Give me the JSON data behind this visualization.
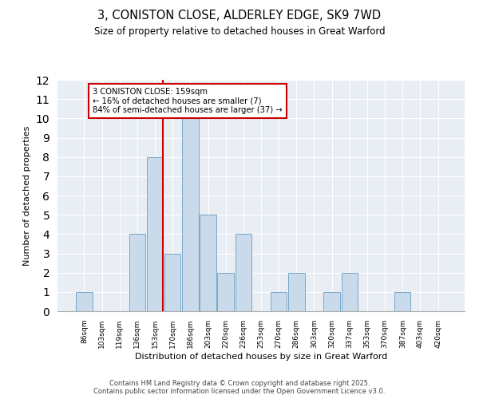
{
  "title1": "3, CONISTON CLOSE, ALDERLEY EDGE, SK9 7WD",
  "title2": "Size of property relative to detached houses in Great Warford",
  "xlabel": "Distribution of detached houses by size in Great Warford",
  "ylabel": "Number of detached properties",
  "categories": [
    "86sqm",
    "103sqm",
    "119sqm",
    "136sqm",
    "153sqm",
    "170sqm",
    "186sqm",
    "203sqm",
    "220sqm",
    "236sqm",
    "253sqm",
    "270sqm",
    "286sqm",
    "303sqm",
    "320sqm",
    "337sqm",
    "353sqm",
    "370sqm",
    "387sqm",
    "403sqm",
    "420sqm"
  ],
  "values": [
    1,
    0,
    0,
    4,
    8,
    3,
    10,
    5,
    2,
    4,
    0,
    1,
    2,
    0,
    1,
    2,
    0,
    0,
    1,
    0,
    0
  ],
  "bar_color": "#c9daea",
  "bar_edge_color": "#7aa8c8",
  "red_line_index": 4,
  "red_line_label": "3 CONISTON CLOSE: 159sqm",
  "annotation_line2": "← 16% of detached houses are smaller (7)",
  "annotation_line3": "84% of semi-detached houses are larger (37) →",
  "annotation_box_color": "#ffffff",
  "annotation_box_edge": "#cc0000",
  "ylim": [
    0,
    12
  ],
  "yticks": [
    0,
    1,
    2,
    3,
    4,
    5,
    6,
    7,
    8,
    9,
    10,
    11,
    12
  ],
  "background_color": "#e8eef4",
  "footer_line1": "Contains HM Land Registry data © Crown copyright and database right 2025.",
  "footer_line2": "Contains public sector information licensed under the Open Government Licence v3.0."
}
